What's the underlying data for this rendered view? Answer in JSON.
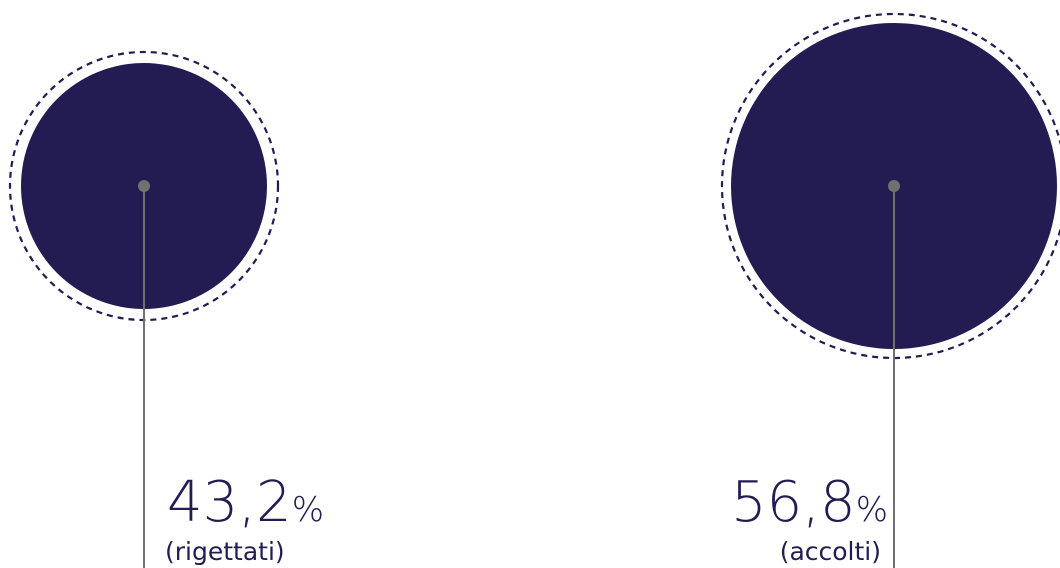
{
  "chart_data": {
    "type": "bubble",
    "unit": "%",
    "colors": {
      "fill": "#221c52",
      "dash": "#221c52",
      "connector": "#707070",
      "text": "#221c52"
    },
    "items": [
      {
        "value": 43.2,
        "value_text": "43,2",
        "label": "(rigettati)"
      },
      {
        "value": 56.8,
        "value_text": "56,8",
        "label": "(accolti)"
      }
    ]
  }
}
